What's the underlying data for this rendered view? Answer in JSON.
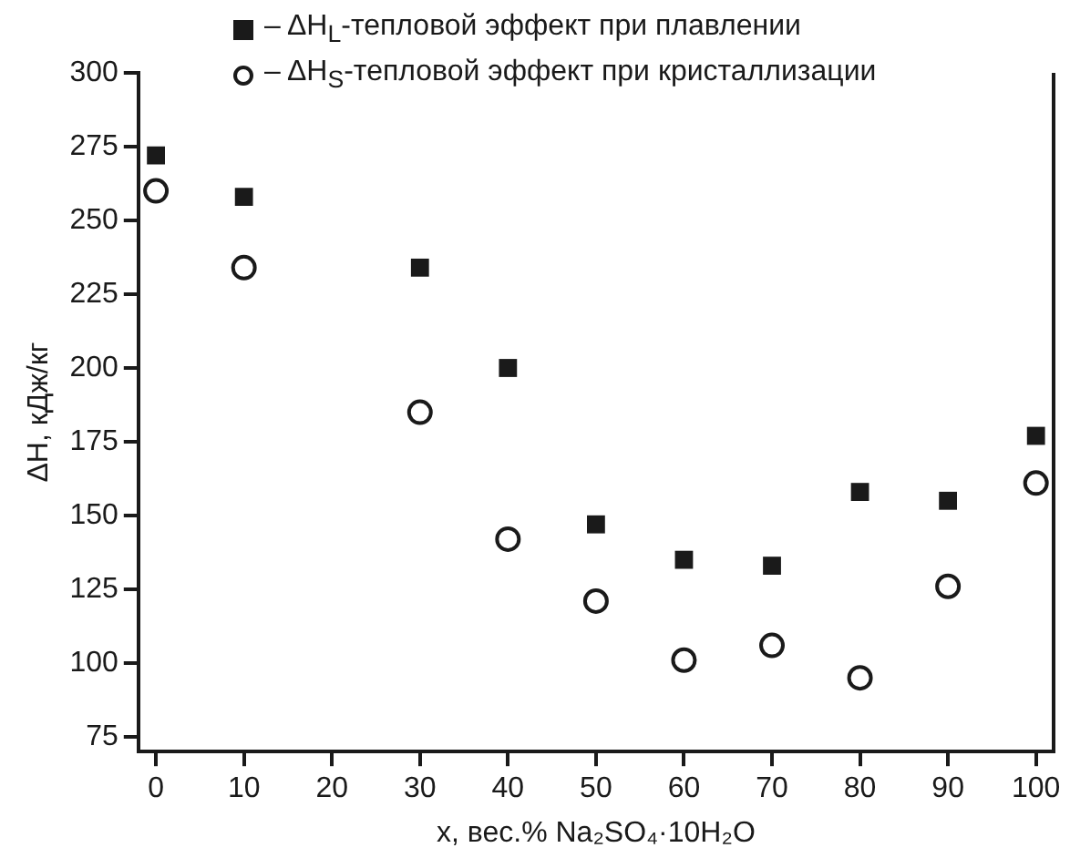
{
  "chart_data": {
    "type": "scatter",
    "xlabel": "x, вес.% Na₂SO₄·10H₂O",
    "ylabel": "ΔH, кДж/кг",
    "x": [
      0,
      10,
      30,
      40,
      50,
      60,
      70,
      80,
      90,
      100
    ],
    "series": [
      {
        "name": "– ΔH$_{L}$-тепловой эффект при плавлении",
        "color": "#1a1a1a",
        "marker": "square",
        "values": [
          272,
          258,
          234,
          200,
          147,
          135,
          133,
          158,
          155,
          177
        ]
      },
      {
        "name": "– ΔH$_{S}$-тепловой эффект при кристаллизации",
        "color": "#1a1a1a",
        "marker": "circle",
        "values": [
          260,
          234,
          185,
          142,
          121,
          101,
          106,
          95,
          126,
          161
        ]
      }
    ],
    "xlim": [
      -2,
      102
    ],
    "xticks": [
      0,
      10,
      20,
      30,
      40,
      50,
      60,
      70,
      80,
      90,
      100
    ],
    "ylim": [
      70,
      300
    ],
    "yticks": [
      75,
      100,
      125,
      150,
      175,
      200,
      225,
      250,
      275,
      300
    ],
    "grid": false,
    "legend": "top"
  }
}
